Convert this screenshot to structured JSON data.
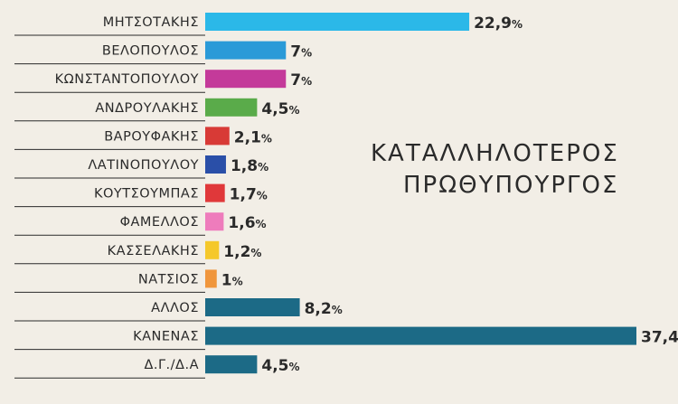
{
  "chart_data": {
    "type": "bar",
    "orientation": "horizontal",
    "title_lines": [
      "ΚΑΤΑΛΛΗΛΟΤΕΡΟΣ",
      "ΠΡΩΘΥΠΟΥΡΓΟΣ"
    ],
    "categories": [
      "ΜΗΤΣΟΤΑΚΗΣ",
      "ΒΕΛΟΠΟΥΛΟΣ",
      "ΚΩΝΣΤΑΝΤΟΠΟΥΛΟΥ",
      "ΑΝΔΡΟΥΛΑΚΗΣ",
      "ΒΑΡΟΥΦΑΚΗΣ",
      "ΛΑΤΙΝΟΠΟΥΛΟΥ",
      "ΚΟΥΤΣΟΥΜΠΑΣ",
      "ΦΑΜΕΛΛΟΣ",
      "ΚΑΣΣΕΛΑΚΗΣ",
      "ΝΑΤΣΙΟΣ",
      "ΑΛΛΟΣ",
      "ΚΑΝΕΝΑΣ",
      "Δ.Γ./Δ.Α"
    ],
    "values": [
      22.9,
      7,
      7,
      4.5,
      2.1,
      1.8,
      1.7,
      1.6,
      1.2,
      1,
      8.2,
      37.4,
      4.5
    ],
    "value_labels": [
      "22,9",
      "7",
      "7",
      "4,5",
      "2,1",
      "1,8",
      "1,7",
      "1,6",
      "1,2",
      "1",
      "8,2",
      "37,4",
      "4,5"
    ],
    "unit": "%",
    "colors": [
      "#2bb8e8",
      "#2a9ad8",
      "#c43a9a",
      "#5aab4a",
      "#d83a36",
      "#2a4fa8",
      "#e0383a",
      "#ee7cbc",
      "#f5c82a",
      "#f0963c",
      "#1c6a86",
      "#1c6a86",
      "#1c6a86"
    ],
    "xlim": [
      0,
      37.4
    ],
    "grid": false,
    "legend": "none"
  }
}
